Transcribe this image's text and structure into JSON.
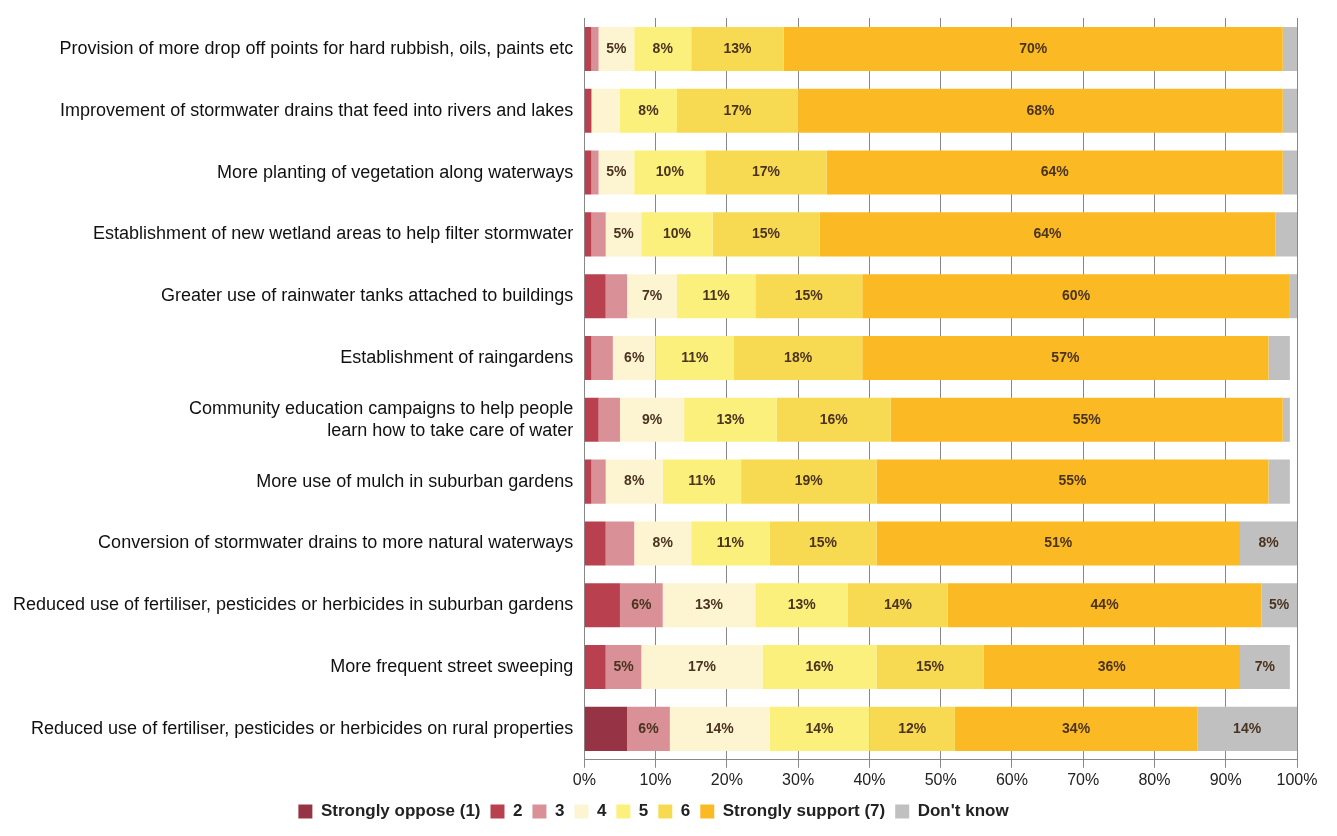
{
  "chart_data": {
    "type": "bar",
    "orientation": "horizontal",
    "stacked": true,
    "legend": "bottom",
    "grid": "x",
    "categories": [
      "Provision of more drop off points for hard rubbish, oils, paints etc",
      "Improvement of stormwater drains that feed into rivers and lakes",
      "More planting of vegetation along waterways",
      "Establishment of new wetland areas to help filter stormwater",
      "Greater use of rainwater tanks attached to buildings",
      "Establishment of raingardens",
      "Community education campaigns to help people\nlearn how to take care of water",
      "More use of mulch in suburban gardens",
      "Conversion of stormwater drains to more natural waterways",
      "Reduced use of fertiliser, pesticides or herbicides in suburban gardens",
      "More frequent street sweeping",
      "Reduced use of fertiliser, pesticides or herbicides on rural properties"
    ],
    "xlim": [
      0,
      100
    ],
    "xticks": [
      {
        "value": 0,
        "label": "0%"
      },
      {
        "value": 10,
        "label": "10%"
      },
      {
        "value": 20,
        "label": "20%"
      },
      {
        "value": 30,
        "label": "30%"
      },
      {
        "value": 40,
        "label": "40%"
      },
      {
        "value": 50,
        "label": "50%"
      },
      {
        "value": 60,
        "label": "60%"
      },
      {
        "value": 70,
        "label": "70%"
      },
      {
        "value": 80,
        "label": "80%"
      },
      {
        "value": 90,
        "label": "90%"
      },
      {
        "value": 100,
        "label": "100%"
      }
    ],
    "series": [
      {
        "name": "Strongly oppose (1)",
        "color": "#963445",
        "values": [
          0,
          0,
          0,
          0,
          0,
          0,
          0,
          0,
          0,
          0,
          0,
          6
        ],
        "value_labels": [
          null,
          null,
          null,
          null,
          null,
          null,
          null,
          null,
          null,
          null,
          null,
          null
        ]
      },
      {
        "name": "2",
        "color": "#b9404f",
        "values": [
          1,
          1,
          1,
          1,
          3,
          1,
          2,
          1,
          3,
          5,
          3,
          0
        ],
        "value_labels": [
          null,
          null,
          null,
          null,
          null,
          null,
          null,
          null,
          null,
          null,
          null,
          null
        ]
      },
      {
        "name": "3",
        "color": "#d99097",
        "values": [
          1,
          0,
          1,
          2,
          3,
          3,
          3,
          2,
          4,
          6,
          5,
          6
        ],
        "value_labels": [
          null,
          null,
          null,
          null,
          null,
          null,
          null,
          null,
          null,
          "6%",
          "5%",
          "6%"
        ]
      },
      {
        "name": "4",
        "color": "#fdf4d2",
        "values": [
          5,
          4,
          5,
          5,
          7,
          6,
          9,
          8,
          8,
          13,
          17,
          14
        ],
        "value_labels": [
          "5%",
          null,
          "5%",
          "5%",
          "7%",
          "6%",
          "9%",
          "8%",
          "8%",
          "13%",
          "17%",
          "14%"
        ]
      },
      {
        "name": "5",
        "color": "#fbf07c",
        "values": [
          8,
          8,
          10,
          10,
          11,
          11,
          13,
          11,
          11,
          13,
          16,
          14
        ],
        "value_labels": [
          "8%",
          "8%",
          "10%",
          "10%",
          "11%",
          "11%",
          "13%",
          "11%",
          "11%",
          "13%",
          "16%",
          "14%"
        ]
      },
      {
        "name": "6",
        "color": "#f8da52",
        "values": [
          13,
          17,
          17,
          15,
          15,
          18,
          16,
          19,
          15,
          14,
          15,
          12
        ],
        "value_labels": [
          "13%",
          "17%",
          "17%",
          "15%",
          "15%",
          "18%",
          "16%",
          "19%",
          "15%",
          "14%",
          "15%",
          "12%"
        ]
      },
      {
        "name": "Strongly support (7)",
        "color": "#fbba23",
        "values": [
          70,
          68,
          64,
          64,
          60,
          57,
          55,
          55,
          51,
          44,
          36,
          34
        ],
        "value_labels": [
          "70%",
          "68%",
          "64%",
          "64%",
          "60%",
          "57%",
          "55%",
          "55%",
          "51%",
          "44%",
          "36%",
          "34%"
        ]
      },
      {
        "name": "Don't know",
        "color": "#c0c0c0",
        "values": [
          2,
          2,
          2,
          3,
          1,
          3,
          1,
          3,
          8,
          5,
          7,
          14
        ],
        "value_labels": [
          null,
          null,
          null,
          null,
          null,
          null,
          null,
          null,
          "8%",
          "5%",
          "7%",
          "14%"
        ]
      }
    ]
  }
}
